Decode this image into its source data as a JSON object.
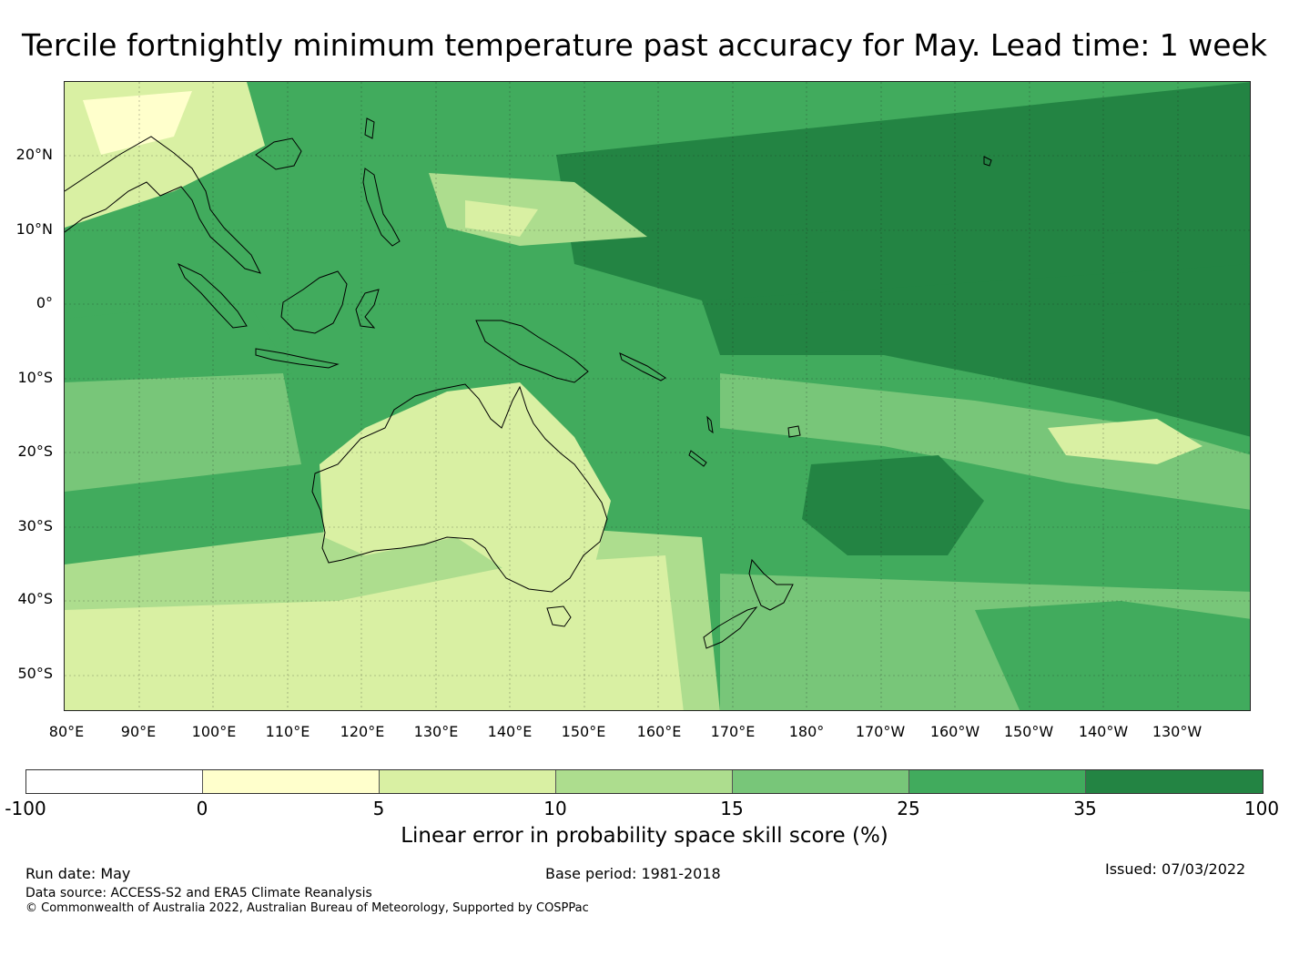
{
  "title": "Tercile fortnightly minimum temperature past accuracy for May. Lead time: 1 week",
  "map": {
    "lat_labels": [
      "20°N",
      "10°N",
      "0°",
      "10°S",
      "20°S",
      "30°S",
      "40°S",
      "50°S"
    ],
    "lon_labels": [
      "80°E",
      "90°E",
      "100°E",
      "110°E",
      "120°E",
      "130°E",
      "140°E",
      "150°E",
      "160°E",
      "170°E",
      "180°",
      "170°W",
      "160°W",
      "150°W",
      "140°W",
      "130°W"
    ],
    "extent": {
      "lon_min": 80,
      "lon_max": 240,
      "lat_min": -55,
      "lat_max": 30
    }
  },
  "colorbar": {
    "ticks": [
      "-100",
      "0",
      "5",
      "10",
      "15",
      "25",
      "35",
      "100"
    ],
    "colors": [
      "#ffffff",
      "#ffffcc",
      "#d9f0a3",
      "#addd8e",
      "#78c679",
      "#41ab5d",
      "#238443"
    ],
    "title": "Linear error in probability space skill score (%)"
  },
  "footer": {
    "run_date": "Run date: May",
    "base_period": "Base period: 1981-2018",
    "issued": "Issued: 07/03/2022",
    "data_source": "Data source: ACCESS-S2 and ERA5 Climate Reanalysis",
    "copyright": "© Commonwealth of Australia 2022, Australian Bureau of Meteorology, Supported by COSPPac"
  }
}
